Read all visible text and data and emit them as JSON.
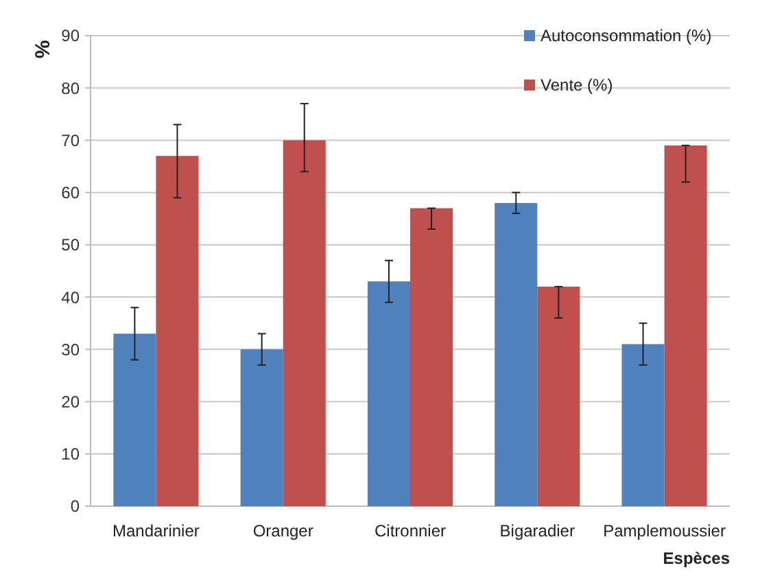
{
  "chart_data": {
    "type": "bar",
    "xlabel": "Espèces",
    "ylabel": "%",
    "categories": [
      "Mandarinier",
      "Oranger",
      "Citronnier",
      "Bigaradier",
      "Pamplemoussier"
    ],
    "series": [
      {
        "name": "Autoconsommation (%)",
        "color": "#4f81bd",
        "values": [
          33,
          30,
          43,
          58,
          31
        ],
        "errors": [
          [
            28,
            38
          ],
          [
            27,
            33
          ],
          [
            39,
            47
          ],
          [
            56,
            60
          ],
          [
            27,
            35
          ]
        ]
      },
      {
        "name": "Vente (%)",
        "color": "#c0504d",
        "values": [
          67,
          70,
          57,
          42,
          69
        ],
        "errors": [
          [
            59,
            73
          ],
          [
            64,
            77
          ],
          [
            53,
            57
          ],
          [
            36,
            42
          ],
          [
            62,
            69
          ]
        ]
      }
    ],
    "ylim": [
      0,
      90
    ],
    "yticks": [
      0,
      10,
      20,
      30,
      40,
      50,
      60,
      70,
      80,
      90
    ],
    "grid": "y",
    "legend": "top right"
  }
}
